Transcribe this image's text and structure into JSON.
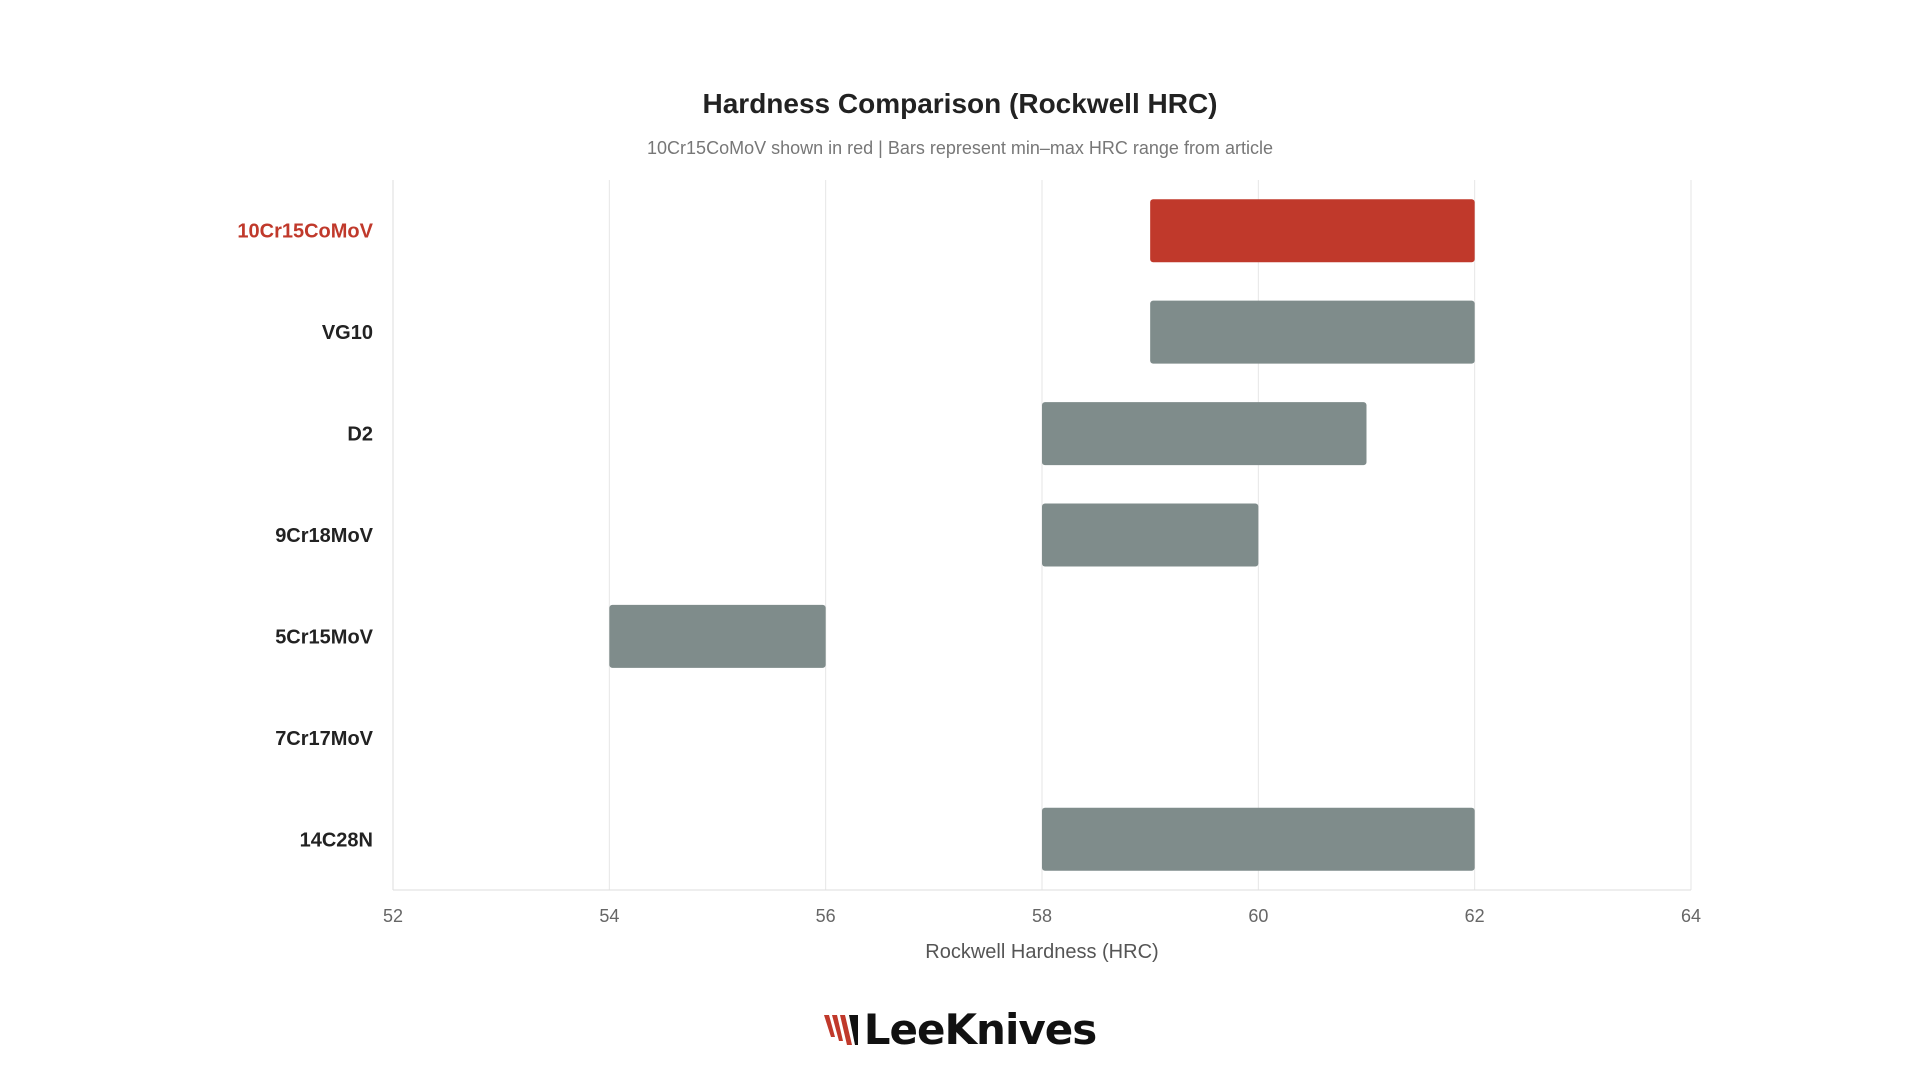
{
  "chart_data": {
    "type": "bar",
    "orientation": "horizontal",
    "range_bars": true,
    "title": "Hardness Comparison (Rockwell HRC)",
    "subtitle": "10Cr15CoMoV shown in red  |  Bars represent min–max HRC range from article",
    "xlabel": "Rockwell Hardness (HRC)",
    "ylabel": "",
    "xlim": [
      52,
      64
    ],
    "xticks": [
      52,
      54,
      56,
      58,
      60,
      62,
      64
    ],
    "grid": "vertical",
    "categories": [
      "10Cr15CoMoV",
      "VG10",
      "D2",
      "9Cr18MoV",
      "5Cr15MoV",
      "7Cr17MoV",
      "14C28N"
    ],
    "series": [
      {
        "min": [
          59,
          59,
          58,
          58,
          54,
          null,
          58
        ],
        "max": [
          62,
          62,
          61,
          60,
          56,
          null,
          62
        ]
      }
    ],
    "highlight": "10Cr15CoMoV"
  },
  "colors": {
    "highlight": "#c0392b",
    "bar": "#7f8c8b",
    "grid": "#e6e6e6",
    "axis_text": "#666666",
    "label_text": "#222222"
  },
  "logo": {
    "text": "LeeKnives",
    "icon": "claw-mark-icon"
  }
}
